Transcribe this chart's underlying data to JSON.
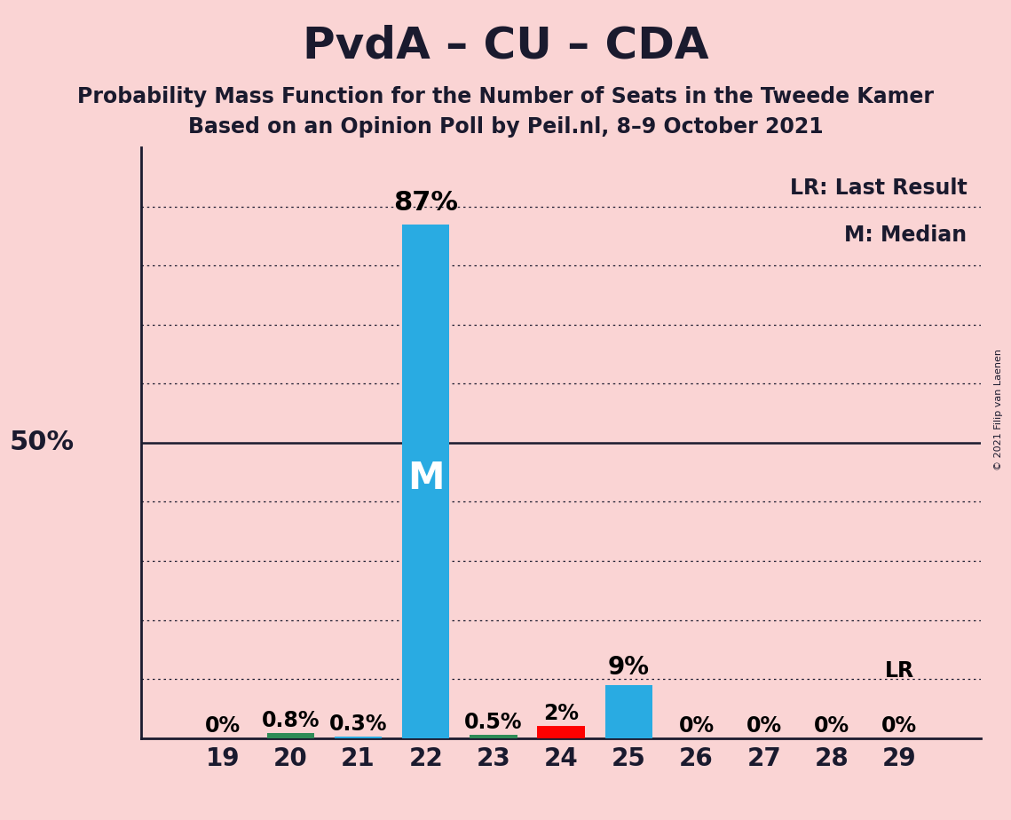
{
  "title": "PvdA – CU – CDA",
  "subtitle1": "Probability Mass Function for the Number of Seats in the Tweede Kamer",
  "subtitle2": "Based on an Opinion Poll by Peil.nl, 8–9 October 2021",
  "copyright": "© 2021 Filip van Laenen",
  "seats": [
    19,
    20,
    21,
    22,
    23,
    24,
    25,
    26,
    27,
    28,
    29
  ],
  "probabilities": [
    0.0,
    0.8,
    0.3,
    87.0,
    0.5,
    2.0,
    9.0,
    0.0,
    0.0,
    0.0,
    0.0
  ],
  "bar_colors": [
    "#29ABE2",
    "#2E8B57",
    "#29ABE2",
    "#29ABE2",
    "#2E8B57",
    "#FF0000",
    "#29ABE2",
    "#29ABE2",
    "#29ABE2",
    "#29ABE2",
    "#29ABE2"
  ],
  "bar_labels": [
    "0%",
    "0.8%",
    "0.3%",
    "87%",
    "0.5%",
    "2%",
    "9%",
    "0%",
    "0%",
    "0%",
    "0%"
  ],
  "median_seat": 22,
  "lr_seat": 29,
  "background_color": "#FAD4D4",
  "title_fontsize": 36,
  "subtitle_fontsize": 17,
  "ylim": [
    0,
    100
  ],
  "dotted_yticks": [
    10,
    20,
    30,
    40,
    60,
    70,
    80,
    90
  ],
  "solid_yticks": [
    50
  ],
  "legend_lr": "LR: Last Result",
  "legend_m": "M: Median"
}
